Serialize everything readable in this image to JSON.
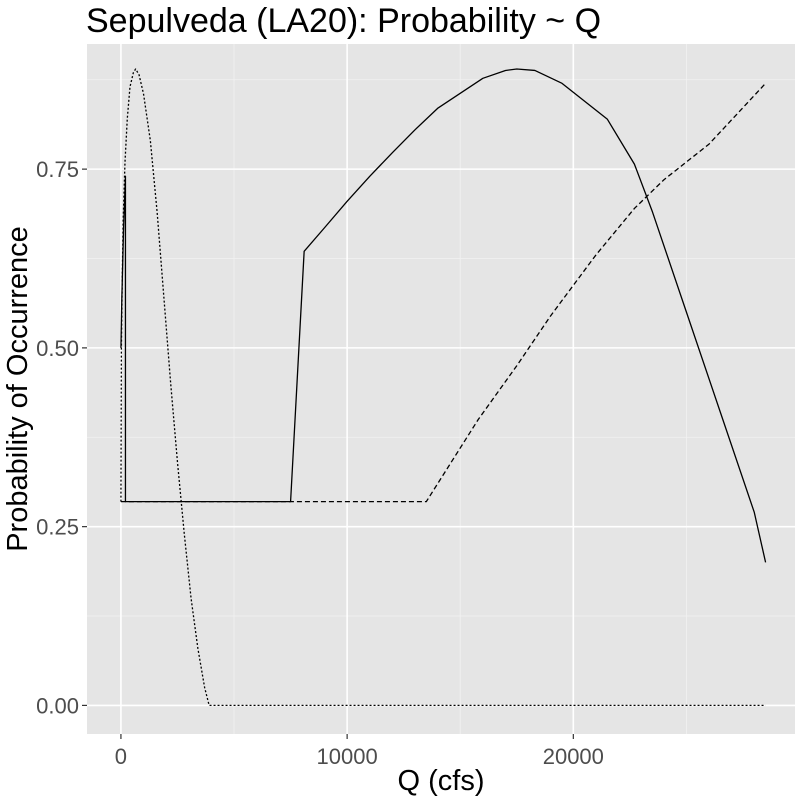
{
  "chart_data": {
    "type": "line",
    "title": "Sepulveda (LA20): Probability ~ Q",
    "xlabel": "Q (cfs)",
    "ylabel": "Probability of Occurrence",
    "xlim": [
      -1500,
      29800
    ],
    "ylim": [
      -0.04,
      0.925
    ],
    "x_ticks": [
      0,
      10000,
      20000
    ],
    "x_tick_labels": [
      "0",
      "10000",
      "20000"
    ],
    "y_ticks": [
      0.0,
      0.25,
      0.5,
      0.75
    ],
    "y_tick_labels": [
      "0.00",
      "0.25",
      "0.50",
      "0.75"
    ],
    "grid": true,
    "background": "#e5e5e5",
    "gridline_color": "#ffffff",
    "line_color": "#000000",
    "series": [
      {
        "style": "solid",
        "points": [
          [
            0,
            0.5
          ],
          [
            40,
            0.57
          ],
          [
            80,
            0.62
          ],
          [
            120,
            0.67
          ],
          [
            160,
            0.705
          ],
          [
            200,
            0.74
          ],
          [
            200,
            0.285
          ],
          [
            7500,
            0.285
          ],
          [
            8100,
            0.635
          ],
          [
            9000,
            0.668
          ],
          [
            10000,
            0.705
          ],
          [
            11000,
            0.74
          ],
          [
            12000,
            0.773
          ],
          [
            13000,
            0.805
          ],
          [
            14000,
            0.835
          ],
          [
            15000,
            0.856
          ],
          [
            16000,
            0.877
          ],
          [
            17000,
            0.888
          ],
          [
            17500,
            0.89
          ],
          [
            18300,
            0.888
          ],
          [
            19500,
            0.87
          ],
          [
            20500,
            0.845
          ],
          [
            21500,
            0.82
          ],
          [
            22700,
            0.757
          ],
          [
            23500,
            0.69
          ],
          [
            25000,
            0.55
          ],
          [
            26500,
            0.41
          ],
          [
            28000,
            0.27
          ],
          [
            28500,
            0.2
          ]
        ]
      },
      {
        "style": "dashed",
        "points": [
          [
            0,
            0.285
          ],
          [
            13500,
            0.285
          ],
          [
            15800,
            0.4
          ],
          [
            17500,
            0.475
          ],
          [
            19000,
            0.545
          ],
          [
            21000,
            0.63
          ],
          [
            22700,
            0.695
          ],
          [
            24000,
            0.735
          ],
          [
            26000,
            0.785
          ],
          [
            28500,
            0.87
          ]
        ]
      },
      {
        "style": "dotted",
        "points": [
          [
            0,
            0.285
          ],
          [
            20,
            0.5
          ],
          [
            60,
            0.6
          ],
          [
            100,
            0.68
          ],
          [
            180,
            0.76
          ],
          [
            280,
            0.82
          ],
          [
            400,
            0.865
          ],
          [
            550,
            0.885
          ],
          [
            650,
            0.89
          ],
          [
            800,
            0.882
          ],
          [
            1000,
            0.855
          ],
          [
            1300,
            0.79
          ],
          [
            1600,
            0.69
          ],
          [
            1900,
            0.57
          ],
          [
            2200,
            0.45
          ],
          [
            2500,
            0.34
          ],
          [
            2800,
            0.24
          ],
          [
            3100,
            0.15
          ],
          [
            3400,
            0.08
          ],
          [
            3700,
            0.025
          ],
          [
            3900,
            0.0
          ],
          [
            28500,
            0.0
          ]
        ]
      }
    ]
  }
}
